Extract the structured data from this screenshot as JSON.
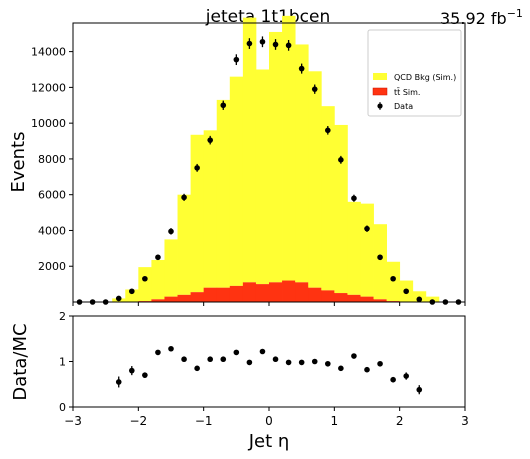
{
  "chart_data": [
    {
      "type": "histogram",
      "title": "jeteta  1t1bcen",
      "lumi_label": "35.92 fb",
      "lumi_sup": "−1",
      "ylabel": "Events",
      "xlim": [
        -3,
        3
      ],
      "ylim": [
        0,
        15600
      ],
      "yticks": [
        2000,
        4000,
        6000,
        8000,
        10000,
        12000,
        14000
      ],
      "bin_edges": [
        -3.0,
        -2.8,
        -2.6,
        -2.4,
        -2.2,
        -2.0,
        -1.8,
        -1.6,
        -1.4,
        -1.2,
        -1.0,
        -0.8,
        -0.6,
        -0.4,
        -0.2,
        0.0,
        0.2,
        0.4,
        0.6,
        0.8,
        1.0,
        1.2,
        1.4,
        1.6,
        1.8,
        2.0,
        2.2,
        2.4,
        2.6,
        2.8,
        3.0
      ],
      "series": [
        {
          "name": "QCD Bkg (Sim.)",
          "color": "#ffff33",
          "values": [
            0,
            0,
            0,
            200,
            700,
            1900,
            2200,
            3200,
            5600,
            8800,
            8800,
            10500,
            11700,
            14800,
            12000,
            14000,
            14800,
            13300,
            12100,
            10300,
            9400,
            5200,
            5200,
            4200,
            2200,
            1200,
            600,
            300,
            0,
            0
          ]
        },
        {
          "name": "tt̄ Sim.",
          "color": "#ff3311",
          "values": [
            0,
            0,
            0,
            0,
            0,
            50,
            150,
            300,
            400,
            550,
            800,
            800,
            900,
            1100,
            1000,
            1100,
            1200,
            1100,
            800,
            650,
            500,
            400,
            300,
            150,
            50,
            0,
            0,
            0,
            0,
            0
          ]
        },
        {
          "name": "Data",
          "color": "#000000",
          "points": [
            {
              "x": -2.9,
              "y": 0,
              "err": 0
            },
            {
              "x": -2.7,
              "y": 0,
              "err": 0
            },
            {
              "x": -2.5,
              "y": 0,
              "err": 0
            },
            {
              "x": -2.3,
              "y": 200,
              "err": 60
            },
            {
              "x": -2.1,
              "y": 600,
              "err": 90
            },
            {
              "x": -1.9,
              "y": 1300,
              "err": 120
            },
            {
              "x": -1.7,
              "y": 2500,
              "err": 150
            },
            {
              "x": -1.5,
              "y": 3950,
              "err": 180
            },
            {
              "x": -1.3,
              "y": 5850,
              "err": 200
            },
            {
              "x": -1.1,
              "y": 7500,
              "err": 220
            },
            {
              "x": -0.9,
              "y": 9050,
              "err": 240
            },
            {
              "x": -0.7,
              "y": 11000,
              "err": 260
            },
            {
              "x": -0.5,
              "y": 13550,
              "err": 300
            },
            {
              "x": -0.3,
              "y": 14450,
              "err": 300
            },
            {
              "x": -0.1,
              "y": 14550,
              "err": 300
            },
            {
              "x": 0.1,
              "y": 14400,
              "err": 300
            },
            {
              "x": 0.3,
              "y": 14350,
              "err": 300
            },
            {
              "x": 0.5,
              "y": 13050,
              "err": 280
            },
            {
              "x": 0.7,
              "y": 11900,
              "err": 260
            },
            {
              "x": 0.9,
              "y": 9600,
              "err": 240
            },
            {
              "x": 1.1,
              "y": 7950,
              "err": 220
            },
            {
              "x": 1.3,
              "y": 5800,
              "err": 200
            },
            {
              "x": 1.5,
              "y": 4100,
              "err": 180
            },
            {
              "x": 1.7,
              "y": 2500,
              "err": 150
            },
            {
              "x": 1.9,
              "y": 1300,
              "err": 120
            },
            {
              "x": 2.1,
              "y": 600,
              "err": 90
            },
            {
              "x": 2.3,
              "y": 150,
              "err": 60
            },
            {
              "x": 2.5,
              "y": 0,
              "err": 0
            },
            {
              "x": 2.7,
              "y": 0,
              "err": 0
            },
            {
              "x": 2.9,
              "y": 0,
              "err": 0
            }
          ]
        }
      ],
      "legend": {
        "placement": "top-right",
        "entries": [
          "QCD Bkg (Sim.)",
          "tt̄ Sim.",
          "Data"
        ]
      }
    },
    {
      "type": "scatter",
      "xlabel": "Jet η",
      "ylabel": "Data/MC",
      "xlim": [
        -3,
        3
      ],
      "ylim": [
        0,
        2
      ],
      "xticks": [
        -3,
        -2,
        -1,
        0,
        1,
        2,
        3
      ],
      "yticks": [
        0,
        1,
        2
      ],
      "points": [
        {
          "x": -2.3,
          "y": 0.55,
          "err": 0.12
        },
        {
          "x": -2.1,
          "y": 0.8,
          "err": 0.1
        },
        {
          "x": -1.9,
          "y": 0.7,
          "err": 0.06
        },
        {
          "x": -1.7,
          "y": 1.2,
          "err": 0.05
        },
        {
          "x": -1.5,
          "y": 1.28,
          "err": 0.04
        },
        {
          "x": -1.3,
          "y": 1.05,
          "err": 0.03
        },
        {
          "x": -1.1,
          "y": 0.85,
          "err": 0.03
        },
        {
          "x": -0.9,
          "y": 1.05,
          "err": 0.03
        },
        {
          "x": -0.7,
          "y": 1.05,
          "err": 0.03
        },
        {
          "x": -0.5,
          "y": 1.2,
          "err": 0.03
        },
        {
          "x": -0.3,
          "y": 0.98,
          "err": 0.03
        },
        {
          "x": -0.1,
          "y": 1.22,
          "err": 0.03
        },
        {
          "x": 0.1,
          "y": 1.05,
          "err": 0.03
        },
        {
          "x": 0.3,
          "y": 0.98,
          "err": 0.03
        },
        {
          "x": 0.5,
          "y": 0.98,
          "err": 0.03
        },
        {
          "x": 0.7,
          "y": 1.0,
          "err": 0.03
        },
        {
          "x": 0.9,
          "y": 0.95,
          "err": 0.03
        },
        {
          "x": 1.1,
          "y": 0.85,
          "err": 0.03
        },
        {
          "x": 1.3,
          "y": 1.12,
          "err": 0.04
        },
        {
          "x": 1.5,
          "y": 0.82,
          "err": 0.04
        },
        {
          "x": 1.7,
          "y": 0.95,
          "err": 0.05
        },
        {
          "x": 1.9,
          "y": 0.6,
          "err": 0.06
        },
        {
          "x": 2.1,
          "y": 0.68,
          "err": 0.08
        },
        {
          "x": 2.3,
          "y": 0.38,
          "err": 0.1
        }
      ]
    }
  ]
}
